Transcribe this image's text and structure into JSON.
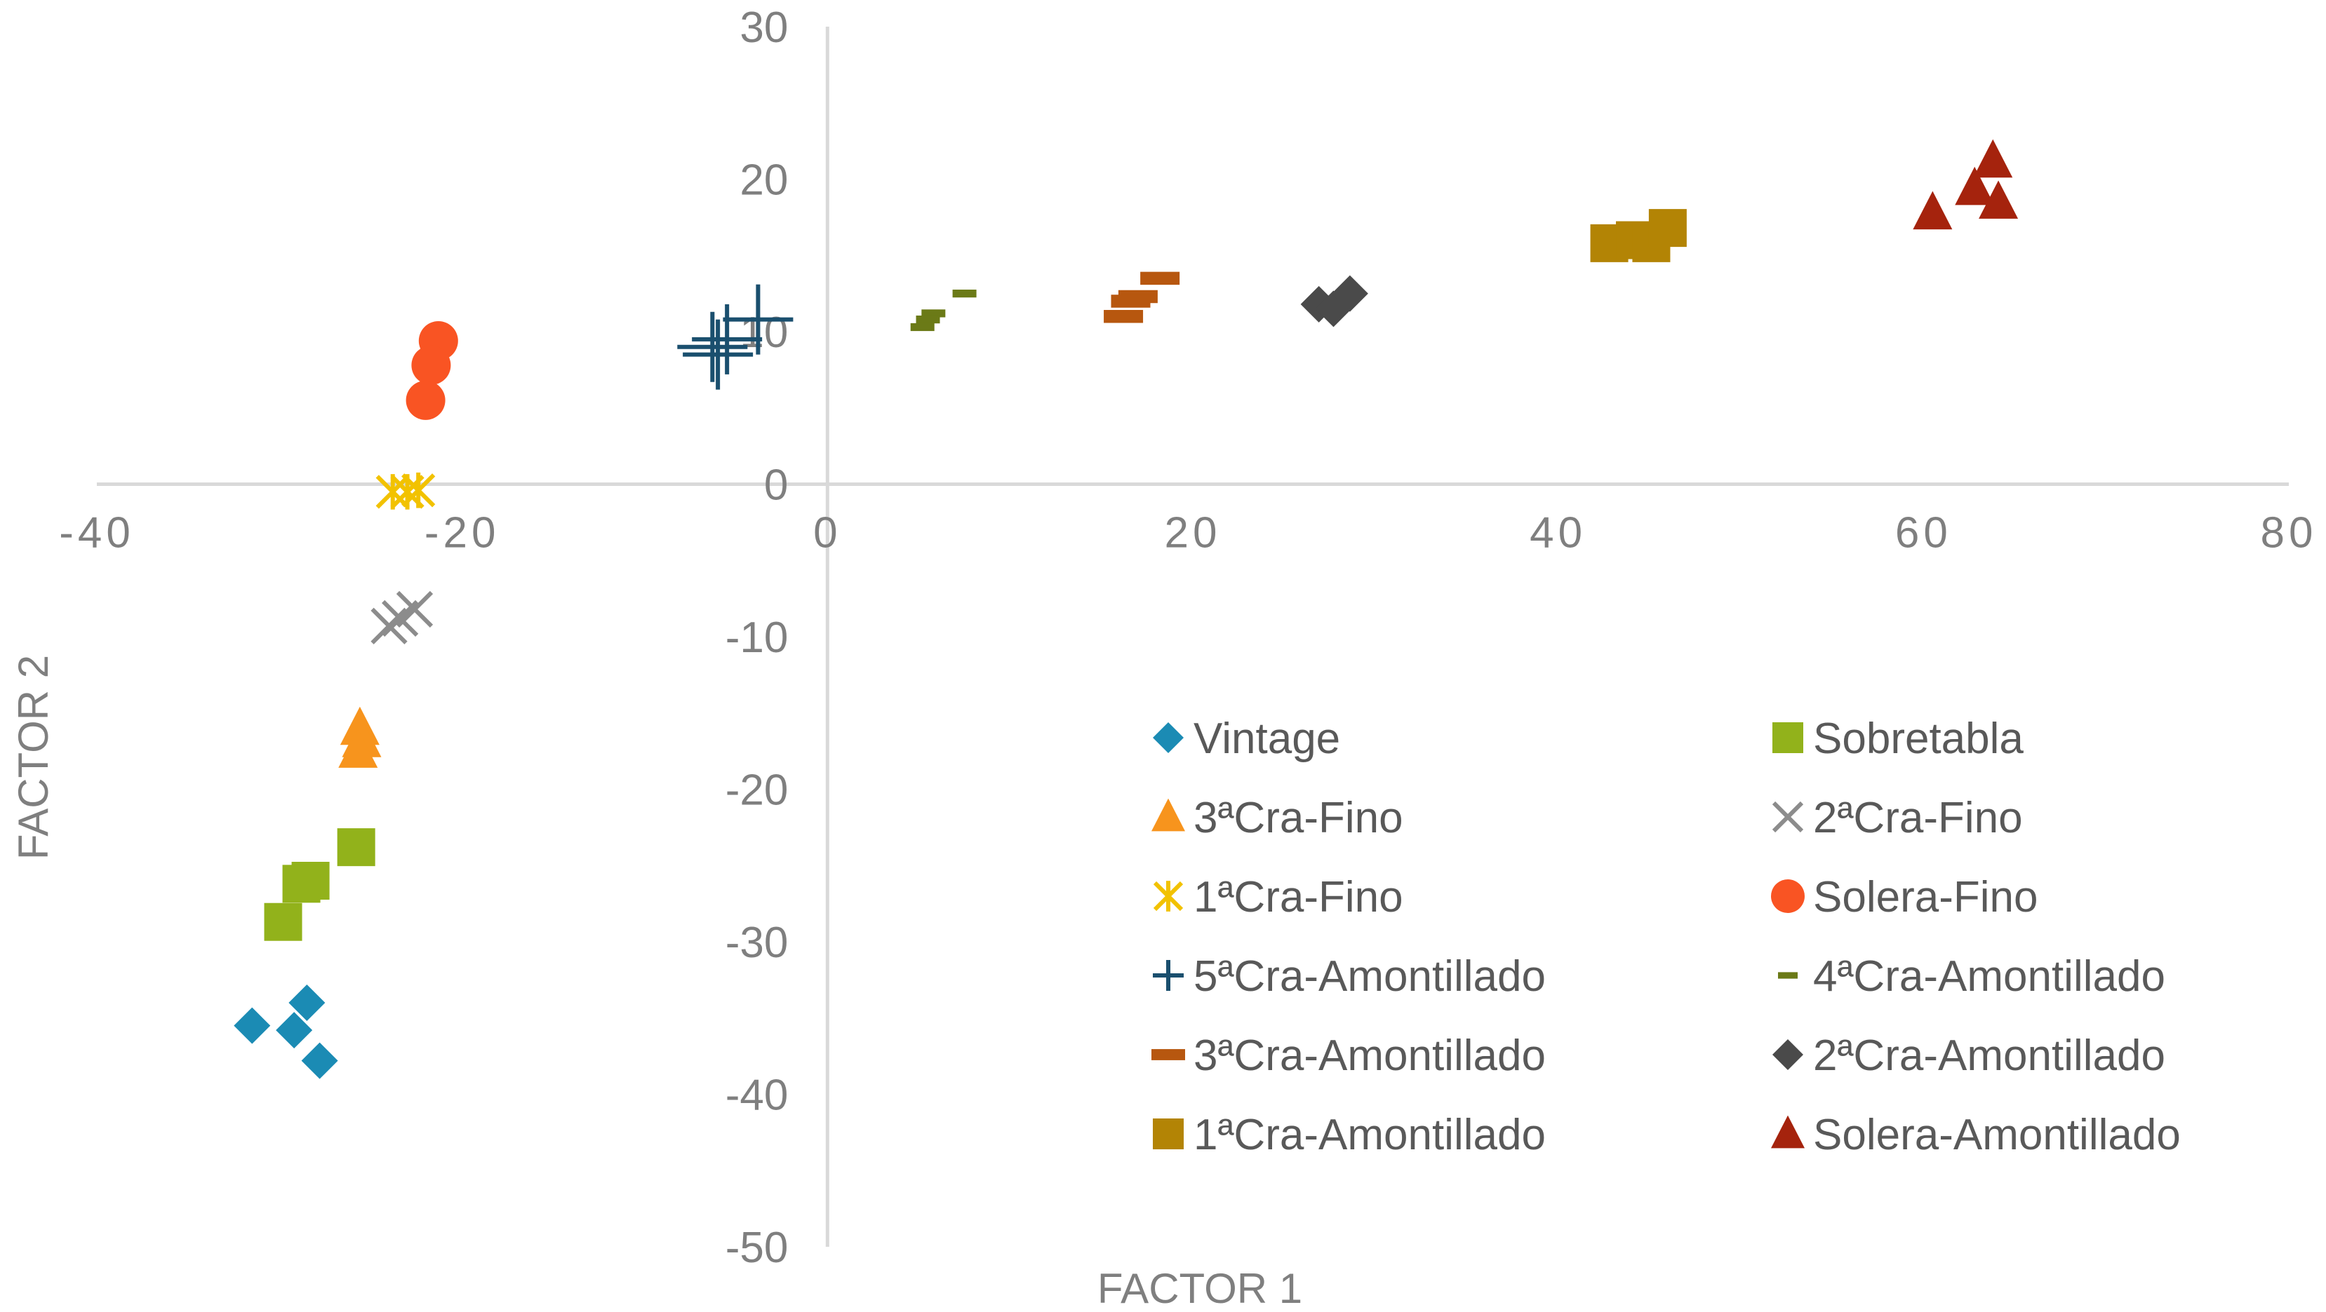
{
  "chart_data": {
    "type": "scatter",
    "title": "",
    "xlabel": "FACTOR 1",
    "ylabel": "FACTOR 2",
    "xlim": [
      -40,
      80
    ],
    "ylim": [
      -50,
      30
    ],
    "x_ticks": [
      -40,
      -20,
      0,
      20,
      40,
      60,
      80
    ],
    "y_ticks": [
      30,
      20,
      10,
      0,
      -10,
      -20,
      -30,
      -40,
      -50
    ],
    "grid": false,
    "legend_position": "lower-right",
    "series": [
      {
        "name": "Vintage",
        "marker": "diamond",
        "color": "#1b8bb4",
        "points": [
          [
            -31.5,
            -35.5
          ],
          [
            -28.5,
            -34
          ],
          [
            -29.2,
            -35.8
          ],
          [
            -27.8,
            -37.8
          ]
        ]
      },
      {
        "name": "Sobretabla",
        "marker": "square",
        "color": "#92b21b",
        "points": [
          [
            -25.8,
            -23.8
          ],
          [
            -28.3,
            -26
          ],
          [
            -28.8,
            -26.2
          ],
          [
            -29.8,
            -28.7
          ]
        ]
      },
      {
        "name": "3ªCra-Fino",
        "marker": "triangle",
        "color": "#f7941d",
        "points": [
          [
            -25.6,
            -16
          ],
          [
            -25.5,
            -16.8
          ],
          [
            -25.7,
            -17.5
          ]
        ]
      },
      {
        "name": "2ªCra-Fino",
        "marker": "x",
        "color": "#8c8c8c",
        "points": [
          [
            -22.6,
            -8.2
          ],
          [
            -23.4,
            -8.8
          ],
          [
            -24.0,
            -9.3
          ]
        ]
      },
      {
        "name": "1ªCra-Fino",
        "marker": "asterisk",
        "color": "#f2c200",
        "points": [
          [
            -23.8,
            -0.5
          ],
          [
            -23.0,
            -0.5
          ],
          [
            -22.4,
            -0.4
          ]
        ]
      },
      {
        "name": "Solera-Fino",
        "marker": "circle",
        "color": "#f95423",
        "points": [
          [
            -21.3,
            9.4
          ],
          [
            -21.7,
            7.8
          ],
          [
            -22.0,
            5.5
          ]
        ]
      },
      {
        "name": "5ªCra-Amontillado",
        "marker": "plus",
        "color": "#1a4f6e",
        "points": [
          [
            -3.8,
            10.8
          ],
          [
            -6.3,
            9.0
          ],
          [
            -6.0,
            8.5
          ],
          [
            -5.5,
            9.5
          ]
        ]
      },
      {
        "name": "4ªCra-Amontillado",
        "marker": "dash",
        "color": "#6b7a17",
        "points": [
          [
            7.5,
            12.5
          ],
          [
            5.8,
            11.2
          ],
          [
            5.5,
            10.8
          ],
          [
            5.2,
            10.3
          ]
        ]
      },
      {
        "name": "3ªCra-Amontillado",
        "marker": "dash",
        "color": "#b7570f",
        "points": [
          [
            18.2,
            13.5
          ],
          [
            17.0,
            12.3
          ],
          [
            16.6,
            12.0
          ],
          [
            16.2,
            11.0
          ]
        ]
      },
      {
        "name": "2ªCra-Amontillado",
        "marker": "diamond",
        "color": "#4a4a4a",
        "points": [
          [
            26.9,
            11.8
          ],
          [
            27.7,
            11.5
          ],
          [
            28.6,
            12.5
          ]
        ]
      },
      {
        "name": "1ªCra-Amontillado",
        "marker": "square",
        "color": "#b38405",
        "points": [
          [
            42.8,
            15.8
          ],
          [
            44.2,
            16.0
          ],
          [
            45.1,
            15.8
          ],
          [
            46.0,
            16.8
          ]
        ]
      },
      {
        "name": "Solera-Amontillado",
        "marker": "triangle",
        "color": "#a5230d",
        "points": [
          [
            63.8,
            21.2
          ],
          [
            62.8,
            19.4
          ],
          [
            64.1,
            18.5
          ],
          [
            60.5,
            17.8
          ]
        ]
      }
    ]
  }
}
